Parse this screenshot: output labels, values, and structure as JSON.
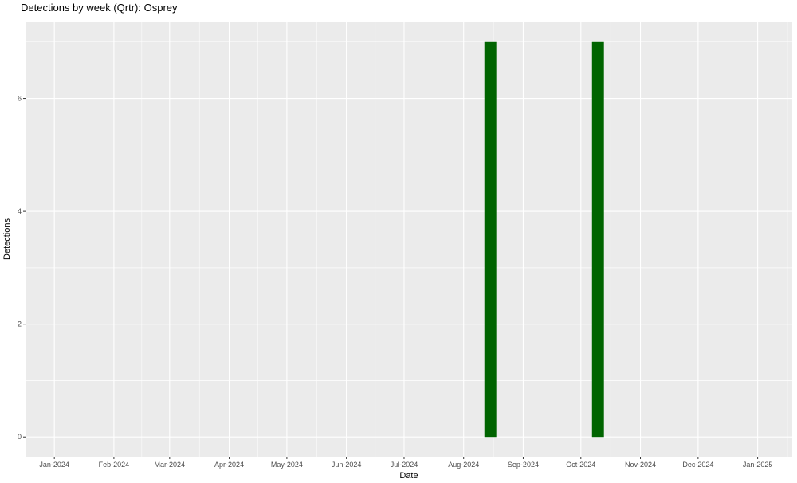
{
  "chart_data": {
    "type": "bar",
    "title": "Detections by week (Qrtr): Osprey",
    "xlabel": "Date",
    "ylabel": "Detections",
    "x_tick_dates": [
      "2024-01-01",
      "2024-02-01",
      "2024-03-01",
      "2024-04-01",
      "2024-05-01",
      "2024-06-01",
      "2024-07-01",
      "2024-08-01",
      "2024-09-01",
      "2024-10-01",
      "2024-11-01",
      "2024-12-01",
      "2025-01-01"
    ],
    "x_tick_labels": [
      "Jan-2024",
      "Feb-2024",
      "Mar-2024",
      "Apr-2024",
      "May-2024",
      "Jun-2024",
      "Jul-2024",
      "Aug-2024",
      "Sep-2024",
      "Oct-2024",
      "Nov-2024",
      "Dec-2024",
      "Jan-2025"
    ],
    "xlim": [
      "2023-12-17",
      "2025-01-19"
    ],
    "y_ticks": [
      0,
      2,
      4,
      6
    ],
    "ylim": [
      -0.35,
      7.35
    ],
    "bin": "week",
    "bars": [
      {
        "week_start": "2024-08-12",
        "value": 7
      },
      {
        "week_start": "2024-10-07",
        "value": 7
      }
    ],
    "bar_color": "#006400",
    "panel_background": "#EBEBEB",
    "grid": true,
    "legend": "none"
  }
}
